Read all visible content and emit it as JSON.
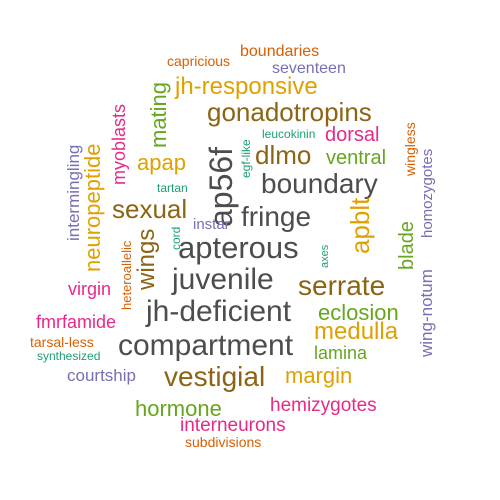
{
  "palette": {
    "gray": "#4d4d4d",
    "brown": "#8c6414",
    "gold": "#e0a000",
    "orange": "#d95f02",
    "green": "#66a61e",
    "teal": "#1b9e77",
    "slate": "#7570b3",
    "magenta": "#e7298a"
  },
  "words": [
    {
      "text": "boundaries",
      "color": "#d95f02"
    },
    {
      "text": "capricious",
      "color": "#d95f02"
    },
    {
      "text": "seventeen",
      "color": "#7570b3"
    },
    {
      "text": "jh-responsive",
      "color": "#e0a000"
    },
    {
      "text": "mating",
      "color": "#66a61e"
    },
    {
      "text": "gonadotropins",
      "color": "#8c6414"
    },
    {
      "text": "leucokinin",
      "color": "#1b9e77"
    },
    {
      "text": "dorsal",
      "color": "#e7298a"
    },
    {
      "text": "wingless",
      "color": "#d95f02"
    },
    {
      "text": "homozygotes",
      "color": "#7570b3"
    },
    {
      "text": "myoblasts",
      "color": "#e7298a"
    },
    {
      "text": "neuropeptide",
      "color": "#e0a000"
    },
    {
      "text": "intermingling",
      "color": "#7570b3"
    },
    {
      "text": "apap",
      "color": "#e0a000"
    },
    {
      "text": "ap56f",
      "color": "#4d4d4d"
    },
    {
      "text": "dlmo",
      "color": "#8c6414"
    },
    {
      "text": "ventral",
      "color": "#66a61e"
    },
    {
      "text": "egf-like",
      "color": "#1b9e77"
    },
    {
      "text": "tartan",
      "color": "#1b9e77"
    },
    {
      "text": "boundary",
      "color": "#4d4d4d"
    },
    {
      "text": "sexual",
      "color": "#8c6414"
    },
    {
      "text": "fringe",
      "color": "#4d4d4d"
    },
    {
      "text": "instar",
      "color": "#7570b3"
    },
    {
      "text": "cord",
      "color": "#1b9e77"
    },
    {
      "text": "wings",
      "color": "#8c6414"
    },
    {
      "text": "apterous",
      "color": "#4d4d4d"
    },
    {
      "text": "apblt",
      "color": "#e0a000"
    },
    {
      "text": "blade",
      "color": "#66a61e"
    },
    {
      "text": "wing-notum",
      "color": "#7570b3"
    },
    {
      "text": "heteroallelic",
      "color": "#d95f02"
    },
    {
      "text": "axes",
      "color": "#1b9e77"
    },
    {
      "text": "juvenile",
      "color": "#4d4d4d"
    },
    {
      "text": "virgin",
      "color": "#e7298a"
    },
    {
      "text": "serrate",
      "color": "#8c6414"
    },
    {
      "text": "jh-deficient",
      "color": "#4d4d4d"
    },
    {
      "text": "eclosion",
      "color": "#66a61e"
    },
    {
      "text": "fmrfamide",
      "color": "#e7298a"
    },
    {
      "text": "medulla",
      "color": "#e0a000"
    },
    {
      "text": "tarsal-less",
      "color": "#d95f02"
    },
    {
      "text": "compartment",
      "color": "#4d4d4d"
    },
    {
      "text": "lamina",
      "color": "#66a61e"
    },
    {
      "text": "synthesized",
      "color": "#1b9e77"
    },
    {
      "text": "vestigial",
      "color": "#8c6414"
    },
    {
      "text": "courtship",
      "color": "#7570b3"
    },
    {
      "text": "margin",
      "color": "#e0a000"
    },
    {
      "text": "hormone",
      "color": "#66a61e"
    },
    {
      "text": "hemizygotes",
      "color": "#e7298a"
    },
    {
      "text": "interneurons",
      "color": "#e7298a"
    },
    {
      "text": "subdivisions",
      "color": "#d95f02"
    }
  ]
}
